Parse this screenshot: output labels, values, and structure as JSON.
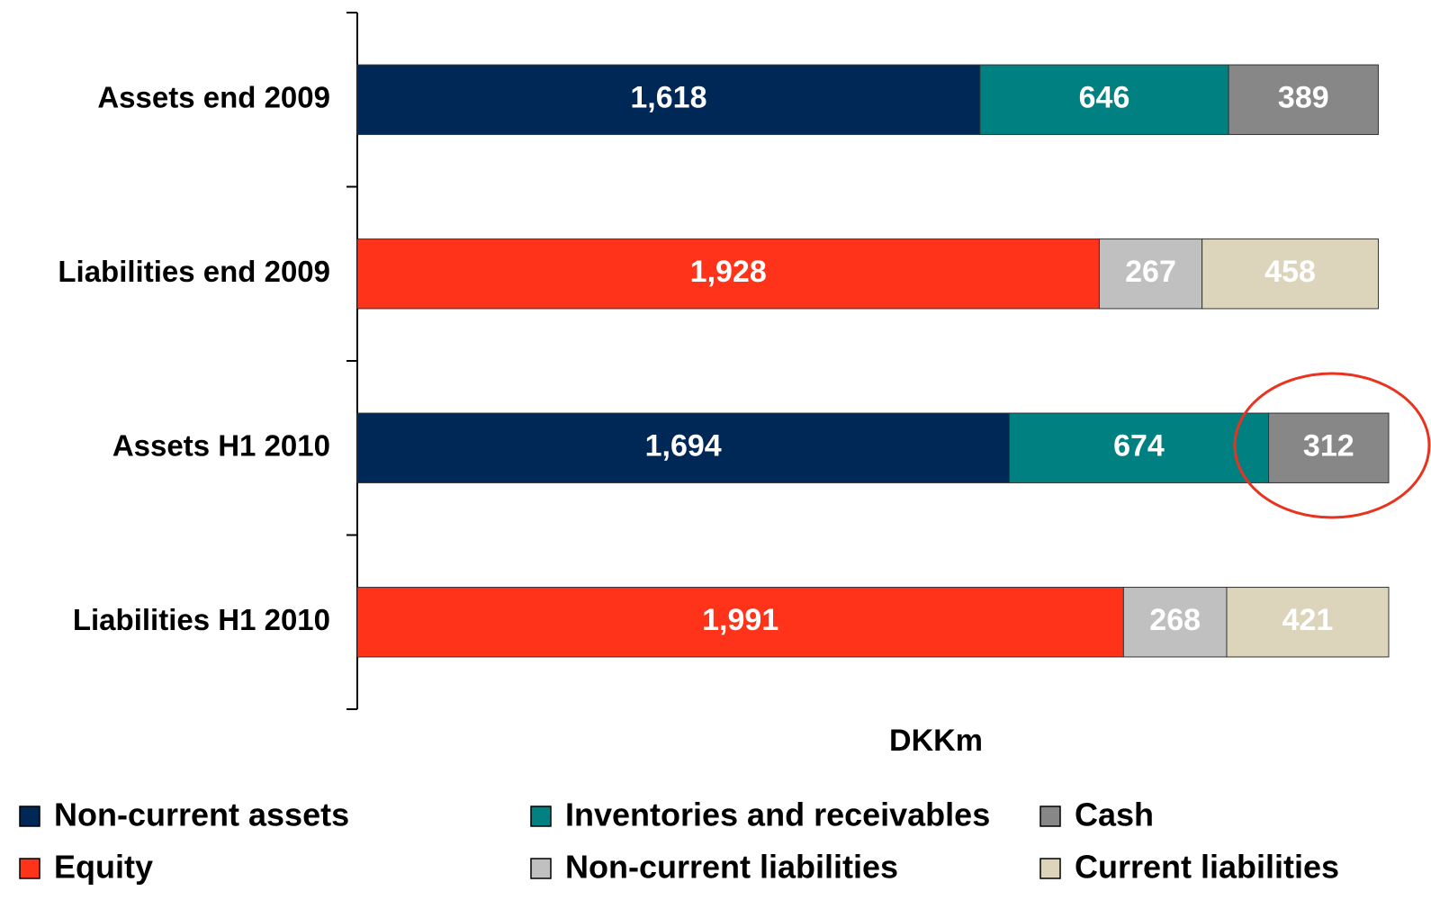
{
  "chart_data": {
    "type": "stacked-bar-horizontal",
    "categories": [
      "Assets end 2009",
      "Liabilities end 2009",
      "Assets H1 2010",
      "Liabilities H1 2010"
    ],
    "x_label": "DKKm",
    "series": [
      {
        "name": "Non-current assets",
        "color": "#002856",
        "values": [
          1618,
          null,
          1694,
          null
        ],
        "value_labels": [
          "1,618",
          null,
          "1,694",
          null
        ]
      },
      {
        "name": "Inventories and receivables",
        "color": "#008080",
        "values": [
          646,
          null,
          674,
          null
        ],
        "value_labels": [
          "646",
          null,
          "674",
          null
        ]
      },
      {
        "name": "Cash",
        "color": "#878787",
        "values": [
          389,
          null,
          312,
          null
        ],
        "value_labels": [
          "389",
          null,
          "312",
          null
        ]
      },
      {
        "name": "Equity",
        "color": "#ff3319",
        "values": [
          null,
          1928,
          null,
          1991
        ],
        "value_labels": [
          null,
          "1,928",
          null,
          "1,991"
        ]
      },
      {
        "name": "Non-current liabilities",
        "color": "#c0c0c0",
        "values": [
          null,
          267,
          null,
          268
        ],
        "value_labels": [
          null,
          "267",
          null,
          "268"
        ]
      },
      {
        "name": "Current liabilities",
        "color": "#ddd5bb",
        "values": [
          null,
          458,
          null,
          421
        ],
        "value_labels": [
          null,
          "458",
          null,
          "421"
        ]
      }
    ]
  }
}
